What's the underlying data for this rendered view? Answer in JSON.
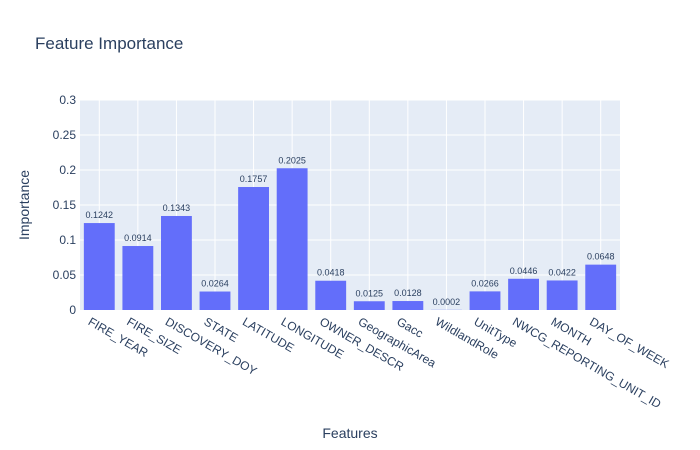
{
  "chart_data": {
    "type": "bar",
    "title": "Feature Importance",
    "xlabel": "Features",
    "ylabel": "Importance",
    "categories": [
      "FIRE_YEAR",
      "FIRE_SIZE",
      "DISCOVERY_DOY",
      "STATE",
      "LATITUDE",
      "LONGITUDE",
      "OWNER_DESCR",
      "GeographicArea",
      "Gacc",
      "WildlandRole",
      "UnitType",
      "NWCG_REPORTING_UNIT_ID",
      "MONTH",
      "DAY_OF_WEEK"
    ],
    "values": [
      0.1242,
      0.0914,
      0.1343,
      0.0264,
      0.1757,
      0.2025,
      0.0418,
      0.0125,
      0.0128,
      0.0002,
      0.0266,
      0.0446,
      0.0422,
      0.0648
    ],
    "data_labels": [
      "0.1242",
      "0.0914",
      "0.1343",
      "0.0264",
      "0.1757",
      "0.2025",
      "0.0418",
      "0.0125",
      "0.0128",
      "0.0002",
      "0.0266",
      "0.0446",
      "0.0422",
      "0.0648"
    ],
    "ylim": [
      0,
      0.3
    ],
    "yticks": [
      0,
      0.05,
      0.1,
      0.15,
      0.2,
      0.25,
      0.3
    ],
    "ytick_labels": [
      "0",
      "0.05",
      "0.1",
      "0.15",
      "0.2",
      "0.25",
      "0.3"
    ],
    "grid": true,
    "colors": {
      "bar": "#636efa",
      "plot_bg": "#e5ecf6",
      "grid": "#ffffff",
      "text": "#2a3f5f"
    }
  }
}
